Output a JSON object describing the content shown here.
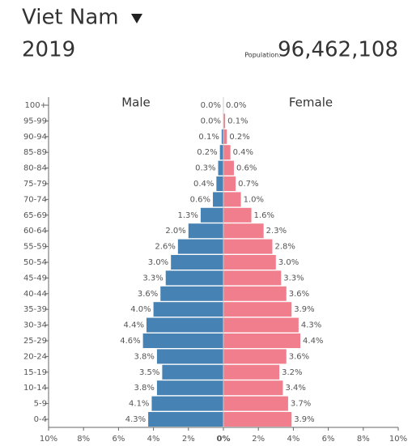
{
  "chart_data": {
    "type": "pyramid",
    "title": "Viet Nam",
    "year": "2019",
    "population_label": "Population:",
    "population": "96,462,108",
    "categories": [
      "100+",
      "95-99",
      "90-94",
      "85-89",
      "80-84",
      "75-79",
      "70-74",
      "65-69",
      "60-64",
      "55-59",
      "50-54",
      "45-49",
      "40-44",
      "35-39",
      "30-34",
      "25-29",
      "20-24",
      "15-19",
      "10-14",
      "5-9",
      "0-4"
    ],
    "series": [
      {
        "name": "Male",
        "color": "#4682b4",
        "values": [
          0.0,
          0.0,
          0.1,
          0.2,
          0.3,
          0.4,
          0.6,
          1.3,
          2.0,
          2.6,
          3.0,
          3.3,
          3.6,
          4.0,
          4.4,
          4.6,
          3.8,
          3.5,
          3.8,
          4.1,
          4.3
        ],
        "value_labels": [
          "0.0%",
          "0.0%",
          "0.1%",
          "0.2%",
          "0.3%",
          "0.4%",
          "0.6%",
          "1.3%",
          "2.0%",
          "2.6%",
          "3.0%",
          "3.3%",
          "3.6%",
          "4.0%",
          "4.4%",
          "4.6%",
          "3.8%",
          "3.5%",
          "3.8%",
          "4.1%",
          "4.3%"
        ]
      },
      {
        "name": "Female",
        "color": "#f17e8c",
        "values": [
          0.0,
          0.1,
          0.2,
          0.4,
          0.6,
          0.7,
          1.0,
          1.6,
          2.3,
          2.8,
          3.0,
          3.3,
          3.6,
          3.9,
          4.3,
          4.4,
          3.6,
          3.2,
          3.4,
          3.7,
          3.9
        ],
        "value_labels": [
          "0.0%",
          "0.1%",
          "0.2%",
          "0.4%",
          "0.6%",
          "0.7%",
          "1.0%",
          "1.6%",
          "2.3%",
          "2.8%",
          "3.0%",
          "3.3%",
          "3.6%",
          "3.9%",
          "4.3%",
          "4.4%",
          "3.6%",
          "3.2%",
          "3.4%",
          "3.7%",
          "3.9%"
        ]
      }
    ],
    "xlim": [
      -10,
      10
    ],
    "xticks": [
      {
        "value": -10,
        "label": "10%"
      },
      {
        "value": -8,
        "label": "8%"
      },
      {
        "value": -6,
        "label": "6%"
      },
      {
        "value": -4,
        "label": "4%"
      },
      {
        "value": -2,
        "label": "2%"
      },
      {
        "value": 0,
        "label": "0%"
      },
      {
        "value": 2,
        "label": "2%"
      },
      {
        "value": 4,
        "label": "4%"
      },
      {
        "value": 6,
        "label": "6%"
      },
      {
        "value": 8,
        "label": "8%"
      },
      {
        "value": 10,
        "label": "10%"
      }
    ]
  }
}
